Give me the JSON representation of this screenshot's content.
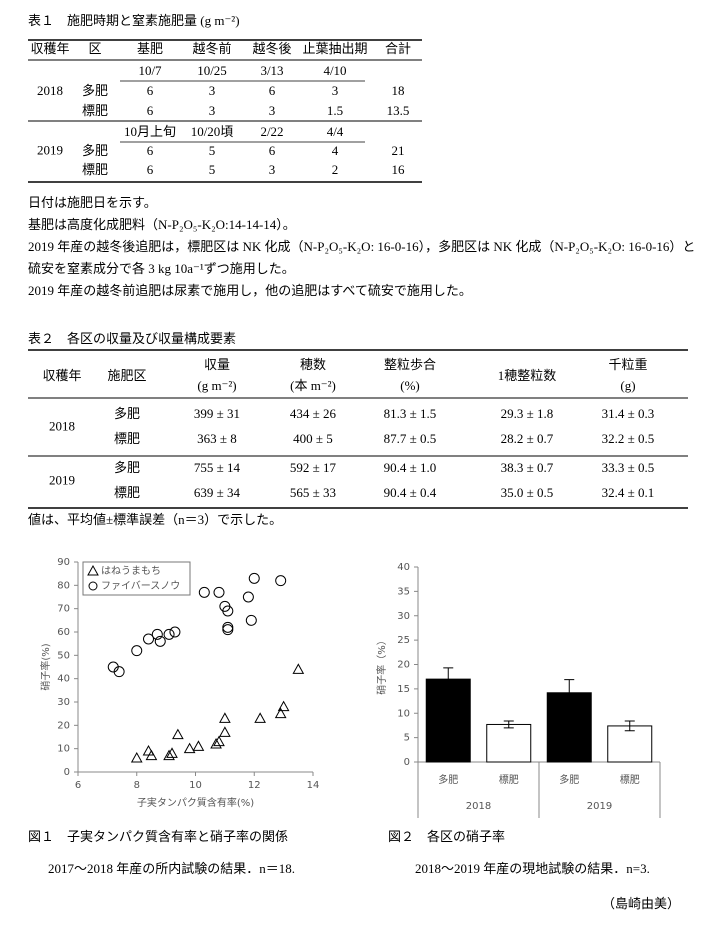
{
  "table1": {
    "title": "表１　施肥時期と窒素施肥量 (g m⁻²)",
    "header": [
      "収穫年",
      "区",
      "基肥",
      "越冬前",
      "越冬後",
      "止葉抽出期",
      "合計"
    ],
    "years": [
      {
        "year": "2018",
        "dates": [
          "10/7",
          "10/25",
          "3/13",
          "4/10"
        ],
        "rows": [
          [
            "多肥",
            "6",
            "3",
            "6",
            "3",
            "18"
          ],
          [
            "標肥",
            "6",
            "3",
            "3",
            "1.5",
            "13.5"
          ]
        ]
      },
      {
        "year": "2019",
        "dates": [
          "10月上旬",
          "10/20頃",
          "2/22",
          "4/4"
        ],
        "rows": [
          [
            "多肥",
            "6",
            "5",
            "6",
            "4",
            "21"
          ],
          [
            "標肥",
            "6",
            "5",
            "3",
            "2",
            "16"
          ]
        ]
      }
    ]
  },
  "notes": [
    "日付は施肥日を示す。",
    "基肥は高度化成肥料（N-P₂O₅-K₂O:14-14-14）。",
    "2019 年産の越冬後追肥は，標肥区は NK 化成（N-P₂O₅-K₂O: 16-0-16），多肥区は NK 化成（N-P₂O₅-K₂O: 16-0-16）と硫安を窒素成分で各 3 kg 10a⁻¹ずつ施用した。",
    "2019 年産の越冬前追肥は尿素で施用し，他の追肥はすべて硫安で施用した。"
  ],
  "table2": {
    "title": "表２　各区の収量及び収量構成要素",
    "header": [
      {
        "name": "収穫年"
      },
      {
        "name": "施肥区"
      },
      {
        "name": "収量",
        "unit": "(g m⁻²)"
      },
      {
        "name": "穂数",
        "unit": "(本 m⁻²)"
      },
      {
        "name": "整粒歩合",
        "unit": "(%)"
      },
      {
        "name": "1穂整粒数"
      },
      {
        "name": "千粒重",
        "unit": "(g)"
      }
    ],
    "years": [
      {
        "year": "2018",
        "rows": [
          [
            "多肥",
            "399 ± 31",
            "434 ± 26",
            "81.3 ± 1.5",
            "29.3 ± 1.8",
            "31.4 ± 0.3"
          ],
          [
            "標肥",
            "363 ± 8",
            "400 ± 5",
            "87.7 ± 0.5",
            "28.2 ± 0.7",
            "32.2 ± 0.5"
          ]
        ]
      },
      {
        "year": "2019",
        "rows": [
          [
            "多肥",
            "755 ± 14",
            "592 ± 17",
            "90.4 ± 1.0",
            "38.3 ± 0.7",
            "33.3 ± 0.5"
          ],
          [
            "標肥",
            "639 ± 34",
            "565 ± 33",
            "90.4 ± 0.4",
            "35.0 ± 0.5",
            "32.4 ± 0.1"
          ]
        ]
      }
    ],
    "note": "値は、平均値±標準誤差（n＝3）で示した。"
  },
  "chart_data": [
    {
      "type": "scatter",
      "caption": "図１　子実タンパク質含有率と硝子率の関係",
      "subcaption": "2017～2018 年産の所内試験の結果．n＝18.",
      "x_label": "子実タンパク質含有率(%)",
      "y_label": "硝子率(%)",
      "xlim": [
        6,
        14
      ],
      "xticks": [
        6,
        8,
        10,
        12,
        14
      ],
      "ylim": [
        0,
        90
      ],
      "yticks": [
        0,
        10,
        20,
        30,
        40,
        50,
        60,
        70,
        80,
        90
      ],
      "series": [
        {
          "name": "はねうまもち",
          "marker": "triangle",
          "color": "#000000",
          "x": [
            8.0,
            8.4,
            8.5,
            9.1,
            9.2,
            9.4,
            9.8,
            10.1,
            10.7,
            10.8,
            11.0,
            11.0,
            12.2,
            12.9,
            13.0,
            13.5
          ],
          "values": [
            6,
            9,
            7,
            7,
            8,
            16,
            10,
            11,
            12,
            13,
            17,
            23,
            23,
            25,
            28,
            44
          ]
        },
        {
          "name": "ファイバースノウ",
          "marker": "circle",
          "color": "#000000",
          "x": [
            7.2,
            7.4,
            8.0,
            8.4,
            8.7,
            8.8,
            9.1,
            9.3,
            10.3,
            10.8,
            11.0,
            11.1,
            11.1,
            11.1,
            11.8,
            11.9,
            12.0,
            12.9
          ],
          "values": [
            45,
            43,
            52,
            57,
            59,
            56,
            59,
            60,
            77,
            77,
            71,
            69,
            62,
            61,
            75,
            65,
            83,
            82
          ]
        }
      ]
    },
    {
      "type": "bar",
      "caption": "図２　各区の硝子率",
      "subcaption": "2018～2019 年産の現地試験の結果．n=3.",
      "y_label": "硝子率（%）",
      "ylim": [
        0,
        40
      ],
      "yticks": [
        0,
        5,
        10,
        15,
        20,
        25,
        30,
        35,
        40
      ],
      "categories": [
        "多肥",
        "標肥",
        "多肥",
        "標肥"
      ],
      "groups": [
        "2018",
        "2019"
      ],
      "values": [
        17.0,
        7.7,
        14.2,
        7.4
      ],
      "errors": [
        2.3,
        0.7,
        2.7,
        1.0
      ],
      "colors": [
        "#000000",
        "#ffffff",
        "#000000",
        "#ffffff"
      ]
    }
  ],
  "author": "（島崎由美）"
}
